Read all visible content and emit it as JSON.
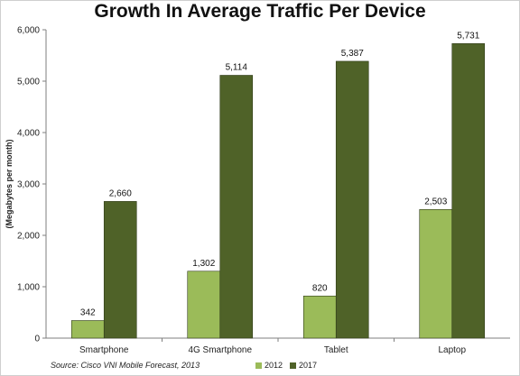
{
  "chart_data": {
    "type": "bar",
    "title": "Growth In Average Traffic Per Device",
    "xlabel": "",
    "ylabel": "(Megabytes per month)",
    "categories": [
      "Smartphone",
      "4G Smartphone",
      "Tablet",
      "Laptop"
    ],
    "series": [
      {
        "name": "2012",
        "values": [
          342,
          1302,
          820,
          2503
        ],
        "labels": [
          "342",
          "1,302",
          "820",
          "2,503"
        ],
        "color": "#9bbb59"
      },
      {
        "name": "2017",
        "values": [
          2660,
          5114,
          5387,
          5731
        ],
        "labels": [
          "2,660",
          "5,114",
          "5,387",
          "5,731"
        ],
        "color": "#4f6228"
      }
    ],
    "ylim": [
      0,
      6000
    ],
    "yticks": [
      0,
      1000,
      2000,
      3000,
      4000,
      5000,
      6000
    ],
    "ytick_labels": [
      "0",
      "1,000",
      "2,000",
      "3,000",
      "4,000",
      "5,000",
      "6,000"
    ],
    "grid": false,
    "legend_position": "bottom",
    "source": "Source: Cisco VNI Mobile Forecast, 2013"
  }
}
